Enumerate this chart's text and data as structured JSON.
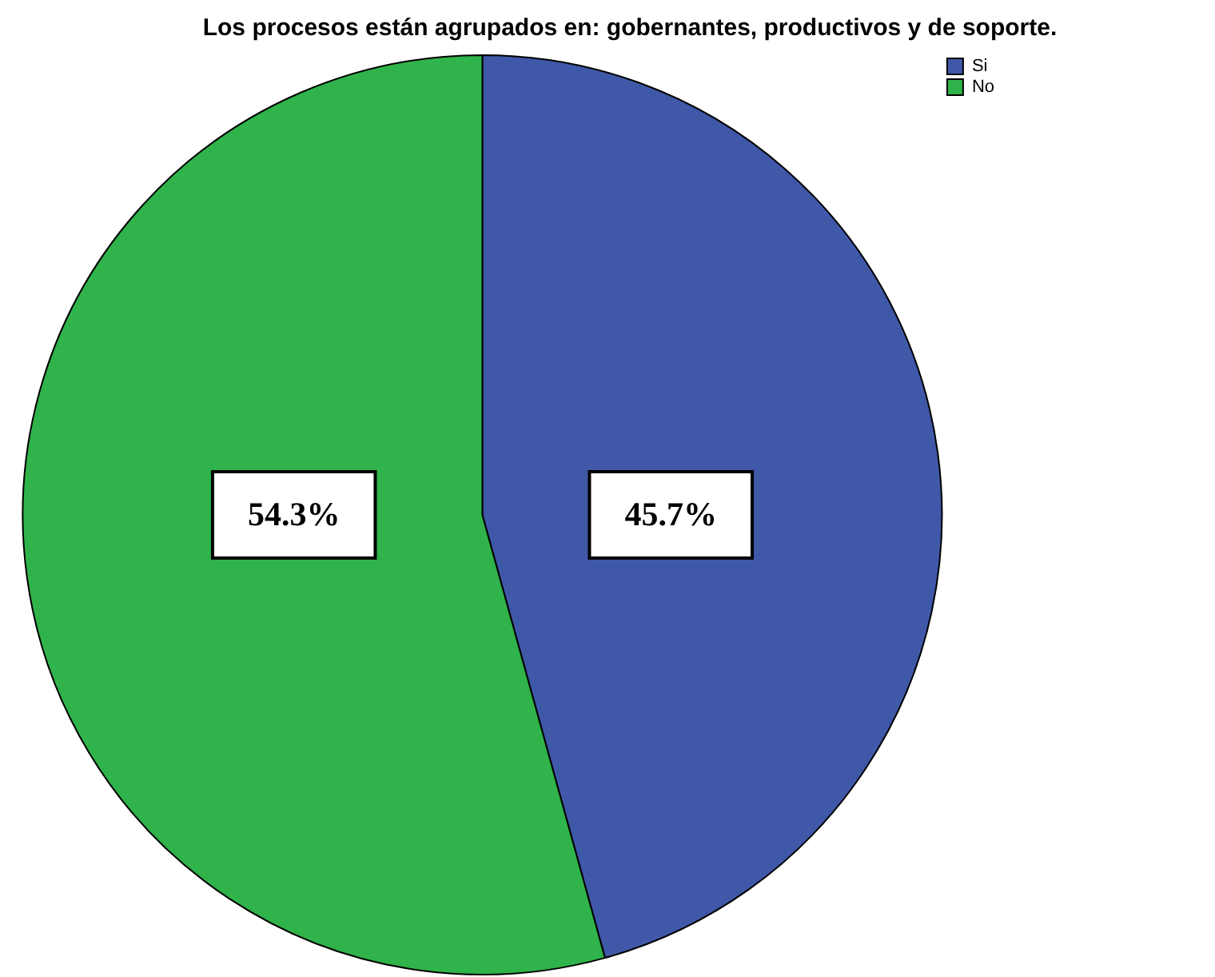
{
  "chart_data": {
    "type": "pie",
    "title": "Los procesos están agrupados en: gobernantes, productivos y de soporte.",
    "categories": [
      "Si",
      "No"
    ],
    "values": [
      45.7,
      54.3
    ],
    "colors": [
      "#3f58a8",
      "#2fb34a"
    ],
    "value_labels": [
      "45.7%",
      "54.3%"
    ],
    "legend": "top right"
  }
}
